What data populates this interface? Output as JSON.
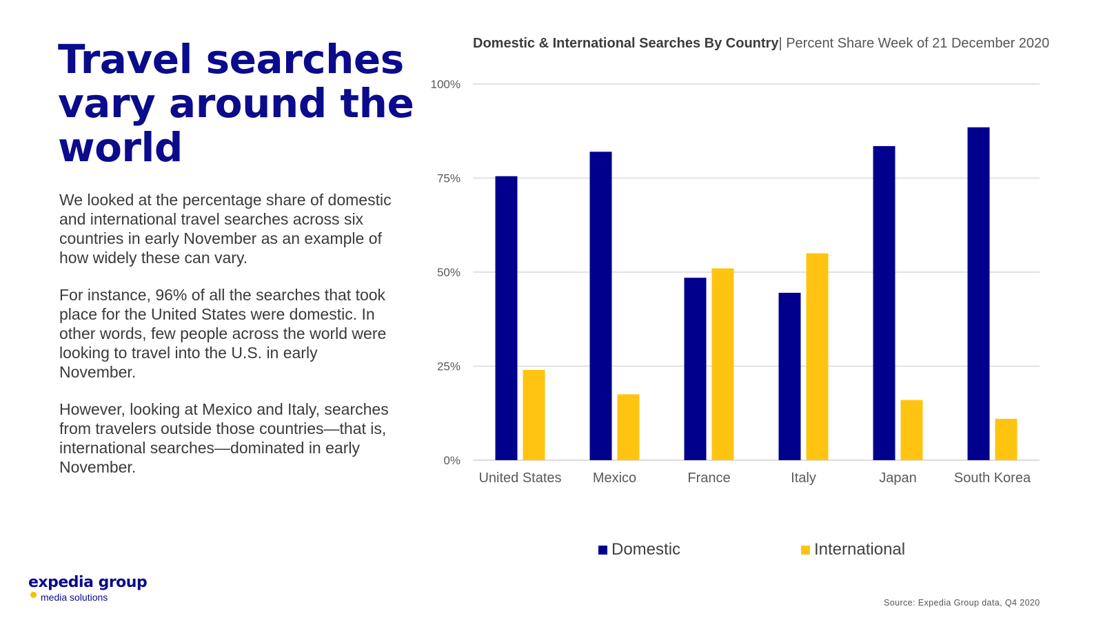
{
  "headline": "Travel searches vary around the world",
  "paragraphs": [
    "We looked at the percentage share of domestic and international travel searches across six countries in early November as an example of how widely these can vary.",
    "For instance, 96% of all the searches that took place for the United States were domestic. In other words, few people across the world were looking to travel into the U.S. in early November.",
    "However, looking at Mexico and Italy, searches from travelers outside those countries—that is, international searches—dominated in early November."
  ],
  "chart_title": {
    "bold": "Domestic & International Searches By Country",
    "separator": "|",
    "rest": "Percent Share Week of 21 December 2020"
  },
  "chart_data": {
    "type": "bar",
    "title": "Domestic & International Searches By Country | Percent Share Week of 21 December 2020",
    "categories": [
      "United States",
      "Mexico",
      "France",
      "Italy",
      "Japan",
      "South Korea"
    ],
    "series": [
      {
        "name": "Domestic",
        "color": "#00008c",
        "values": [
          75.5,
          82,
          48.5,
          44.5,
          83.5,
          88.5
        ]
      },
      {
        "name": "International",
        "color": "#ffc411",
        "values": [
          24,
          17.5,
          51,
          55,
          16,
          11
        ]
      }
    ],
    "ylim": [
      0,
      100
    ],
    "yticks": [
      0,
      25,
      50,
      75,
      100
    ],
    "ytick_labels": [
      "0%",
      "25%",
      "50%",
      "75%",
      "100%"
    ],
    "xlabel": "",
    "ylabel": "",
    "grid": true,
    "legend_position": "bottom"
  },
  "legend": {
    "domestic": "Domestic",
    "international": "International"
  },
  "logo": {
    "brand": "expedia group",
    "tagline": "media solutions"
  },
  "source": "Source: Expedia Group data, Q4 2020"
}
